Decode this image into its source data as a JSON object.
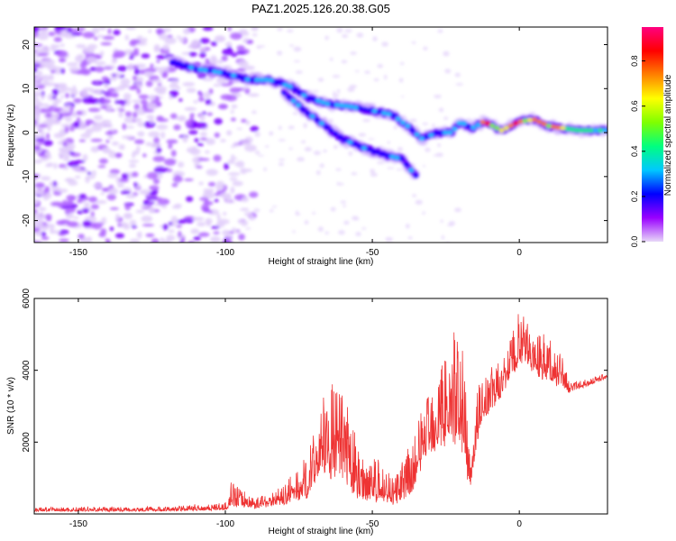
{
  "figure": {
    "title": "PAZ1.2025.126.20.38.G05"
  },
  "chart_data": [
    {
      "type": "heatmap",
      "xlabel": "Height of straight line (km)",
      "ylabel": "Frequency (Hz)",
      "xlim": [
        -165,
        30
      ],
      "ylim": [
        -25,
        24
      ],
      "xticks": [
        -150,
        -100,
        -50,
        0
      ],
      "yticks": [
        -20,
        -10,
        0,
        10,
        20
      ],
      "ridge": [
        {
          "x": -118,
          "y": 16
        },
        {
          "x": -110,
          "y": 14.5
        },
        {
          "x": -100,
          "y": 13.5
        },
        {
          "x": -92,
          "y": 12
        },
        {
          "x": -85,
          "y": 12
        },
        {
          "x": -78,
          "y": 10.5
        },
        {
          "x": -72,
          "y": 8
        },
        {
          "x": -65,
          "y": 6.5
        },
        {
          "x": -58,
          "y": 6
        },
        {
          "x": -50,
          "y": 5
        },
        {
          "x": -43,
          "y": 4
        },
        {
          "x": -38,
          "y": 1.5
        },
        {
          "x": -33,
          "y": -1.5
        },
        {
          "x": -28,
          "y": 0
        },
        {
          "x": -23,
          "y": 0
        },
        {
          "x": -20,
          "y": 2.5
        },
        {
          "x": -16,
          "y": 1
        },
        {
          "x": -12,
          "y": 2.5
        },
        {
          "x": -6,
          "y": 0.5
        },
        {
          "x": 0,
          "y": 2.5
        },
        {
          "x": 5,
          "y": 3
        },
        {
          "x": 10,
          "y": 1.5
        },
        {
          "x": 20,
          "y": 0.5
        },
        {
          "x": 30,
          "y": 0.5
        }
      ],
      "secondary_ridge": [
        {
          "x": -80,
          "y": 9
        },
        {
          "x": -73,
          "y": 5
        },
        {
          "x": -66,
          "y": 1.5
        },
        {
          "x": -60,
          "y": -1.5
        },
        {
          "x": -53,
          "y": -3.5
        },
        {
          "x": -46,
          "y": -5
        },
        {
          "x": -40,
          "y": -6
        },
        {
          "x": -35,
          "y": -10
        }
      ],
      "colorbar": {
        "label": "Normalized spectral amplitude",
        "range": [
          0.0,
          0.95
        ],
        "ticks": [
          0.0,
          0.2,
          0.4,
          0.6,
          0.8
        ],
        "tick_labels": [
          "0.0",
          "0.2",
          "0.4",
          "0.6",
          "0.8"
        ],
        "colors": [
          "#e8d8f8",
          "#9900ff",
          "#0000ff",
          "#00c8ff",
          "#00ff80",
          "#80ff00",
          "#ffff00",
          "#ff8000",
          "#ff0000",
          "#ff0080"
        ]
      }
    },
    {
      "type": "line",
      "xlabel": "Height of straight line (km)",
      "ylabel": "SNR (10 * v/v)",
      "xlim": [
        -165,
        30
      ],
      "ylim": [
        0,
        6000
      ],
      "xticks": [
        -150,
        -100,
        -50,
        0
      ],
      "yticks": [
        2000,
        4000,
        6000
      ],
      "color": "#ee3333",
      "envelope": [
        {
          "x": -165,
          "base": 80,
          "amp": 120
        },
        {
          "x": -120,
          "base": 90,
          "amp": 130
        },
        {
          "x": -100,
          "base": 130,
          "amp": 200
        },
        {
          "x": -98,
          "base": 300,
          "amp": 650
        },
        {
          "x": -90,
          "base": 180,
          "amp": 300
        },
        {
          "x": -80,
          "base": 320,
          "amp": 500
        },
        {
          "x": -72,
          "base": 600,
          "amp": 1100
        },
        {
          "x": -68,
          "base": 1300,
          "amp": 1800
        },
        {
          "x": -64,
          "base": 1300,
          "amp": 2600
        },
        {
          "x": -60,
          "base": 1100,
          "amp": 2500
        },
        {
          "x": -55,
          "base": 600,
          "amp": 1400
        },
        {
          "x": -50,
          "base": 500,
          "amp": 1200
        },
        {
          "x": -42,
          "base": 350,
          "amp": 800
        },
        {
          "x": -36,
          "base": 700,
          "amp": 1600
        },
        {
          "x": -32,
          "base": 1800,
          "amp": 1500
        },
        {
          "x": -26,
          "base": 2200,
          "amp": 2700
        },
        {
          "x": -20,
          "base": 2400,
          "amp": 3000
        },
        {
          "x": -17,
          "base": 800,
          "amp": 1500
        },
        {
          "x": -13,
          "base": 2600,
          "amp": 1400
        },
        {
          "x": -6,
          "base": 3400,
          "amp": 900
        },
        {
          "x": 0,
          "base": 4300,
          "amp": 1500
        },
        {
          "x": 3,
          "base": 4200,
          "amp": 1100
        },
        {
          "x": 8,
          "base": 3900,
          "amp": 1200
        },
        {
          "x": 15,
          "base": 3600,
          "amp": 900
        },
        {
          "x": 17,
          "base": 3400,
          "amp": 250
        },
        {
          "x": 30,
          "base": 3800,
          "amp": 150
        }
      ]
    }
  ]
}
